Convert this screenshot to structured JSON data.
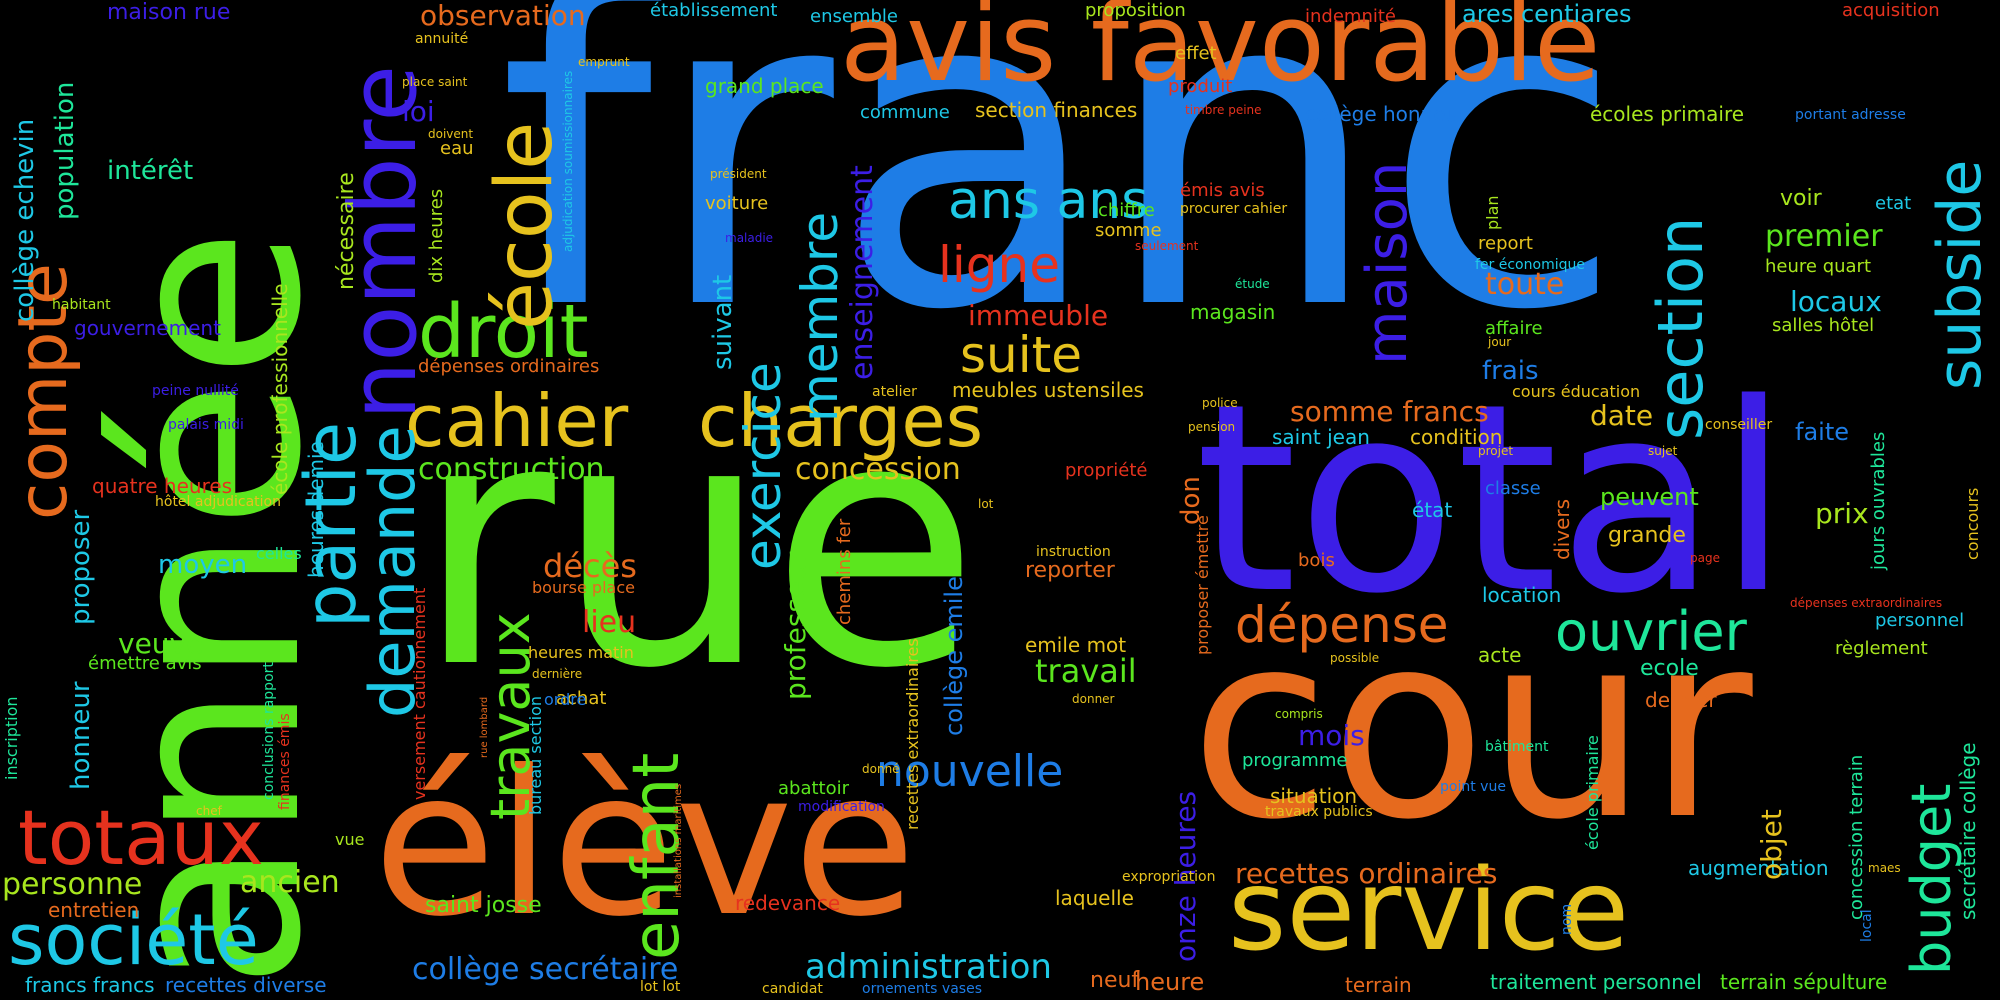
{
  "colors": {
    "background": "#000000",
    "blue": "#1e7de6",
    "green": "#5be61e",
    "orange": "#e66a1e",
    "purple": "#3c1ee6",
    "yellow": "#e6c21e",
    "cyan": "#1ec8e6",
    "red": "#e6321e",
    "teal": "#1ee69a",
    "lime": "#a8e61e"
  },
  "words": [
    "franc",
    "rue",
    "total",
    "cour",
    "année",
    "élève",
    "avis favorable",
    "service",
    "cahier",
    "charges",
    "droit",
    "nombre",
    "école",
    "partie",
    "compte",
    "totaux",
    "société",
    "demande",
    "enfant",
    "section",
    "subside",
    "maison",
    "membre",
    "ans ans",
    "ligne",
    "suite",
    "exercice",
    "travaux",
    "dépense",
    "ouvrier",
    "budget",
    "nouvelle",
    "administration",
    "collège secrétaire",
    "recettes ordinaires",
    "construction",
    "concession",
    "somme francs",
    "premier",
    "locaux",
    "immeuble",
    "observation",
    "maison rue",
    "loi",
    "grand place",
    "section finances",
    "intérêt",
    "population",
    "collège echevin",
    "professeur",
    "enseignement",
    "gouvernement",
    "dépenses ordinaires",
    "meubles ustensiles",
    "saint jean",
    "condition",
    "date",
    "faite",
    "peuvent",
    "prix",
    "grande",
    "divers",
    "location",
    "état",
    "classe",
    "propriété",
    "reporter",
    "décès",
    "lieu",
    "travail",
    "emile mot",
    "mois",
    "programme",
    "situation",
    "travaux publics",
    "onze heures",
    "heure",
    "neuf",
    "terrain",
    "saint josse",
    "laquelle",
    "redevance",
    "personne",
    "ancien",
    "entretien",
    "francs francs",
    "recettes diverse",
    "lot lot",
    "candidat",
    "ornements vases",
    "traitement personnel",
    "terrain sépulture",
    "secrétaire collège",
    "concession terrain",
    "augmentation",
    "objet",
    "dernier",
    "ecole",
    "acte",
    "règlement",
    "personnel",
    "jours ouvrables",
    "concours",
    "dépenses extraordinaires",
    "page",
    "bois",
    "don",
    "proposer émettre",
    "frais",
    "cours éducation",
    "toute",
    "report",
    "affaire",
    "fer économique",
    "heure quart",
    "salles hôtel",
    "voir",
    "etat",
    "émis avis",
    "procurer cahier",
    "somme",
    "chiffre",
    "magasin",
    "établissement",
    "ensemble",
    "proposition",
    "effet",
    "produit",
    "indemnité",
    "ares centiares",
    "acquisition",
    "collège honneur",
    "écoles primaire",
    "portant adresse",
    "timbre peine",
    "commune",
    "annuité",
    "emprunt",
    "place saint",
    "doivent",
    "eau",
    "président",
    "voiture",
    "maladie",
    "adjudication soumissionnaires",
    "dix heures",
    "habitant",
    "peine nullité",
    "palais midi",
    "hôtel adjudication",
    "quatre heures",
    "moyen",
    "celles",
    "veuve",
    "émettre avis",
    "honneur",
    "proposer",
    "inscription",
    "conclusions rapport",
    "finances émis",
    "versement cautionnement",
    "heures matin",
    "dernière",
    "achat",
    "ordre",
    "bureau section",
    "rue lombard",
    "installations maritimes",
    "chef",
    "vue",
    "bourse place",
    "heures demie",
    "école professionnelle",
    "nécessaire",
    "suivant",
    "collège emile",
    "chemins fer",
    "recettes extraordinaires",
    "abattoir",
    "modification",
    "donné",
    "instruction",
    "donner",
    "expropriation",
    "possible",
    "compris",
    "bâtiment",
    "point vue",
    "école primaire",
    "nom",
    "local",
    "maes",
    "seulement",
    "étude",
    "jour",
    "police",
    "pension",
    "projet",
    "sujet",
    "conseiller",
    "atelier",
    "plan",
    "lot"
  ]
}
